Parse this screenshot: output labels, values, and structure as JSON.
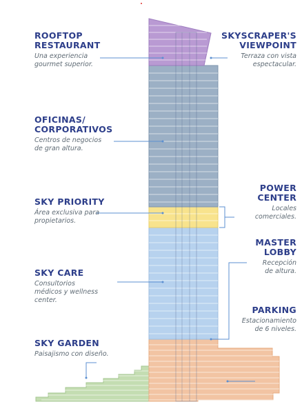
{
  "colors": {
    "heading": "#2d3e8a",
    "desc": "#5e6a74",
    "leader": "#5b8fd1",
    "rooftop": "#b99ad3",
    "offices": "#9cb0c5",
    "sky_priority": "#f8e38d",
    "sky_care": "#b7d2ee",
    "parking": "#f2c4a3",
    "garden": "#c4ddb2",
    "red_dot": "#e0302b"
  },
  "labels": {
    "rooftop": {
      "title": "ROOFTOP\nRESTAURANT",
      "desc": "Una experiencia\ngourmet superior."
    },
    "viewpoint": {
      "title": "SKYSCRAPER'S\nVIEWPOINT",
      "desc": "Terraza con vista\nespectacular."
    },
    "offices": {
      "title": "OFICINAS/\nCORPORATIVOS",
      "desc": "Centros de negocios\nde gran altura."
    },
    "power_center": {
      "title": "POWER\nCENTER",
      "desc": "Locales\ncomerciales."
    },
    "sky_priority": {
      "title": "SKY PRIORITY",
      "desc": "Área exclusiva para\npropietarios."
    },
    "master_lobby": {
      "title": "MASTER\nLOBBY",
      "desc": "Recepción\nde altura."
    },
    "sky_care": {
      "title": "SKY CARE",
      "desc": "Consultorios\nmédicos y wellness\ncenter."
    },
    "parking": {
      "title": "PARKING",
      "desc": "Estacionamiento\nde 6 niveles."
    },
    "sky_garden": {
      "title": "SKY GARDEN",
      "desc": "Paisajismo con diseño."
    }
  }
}
